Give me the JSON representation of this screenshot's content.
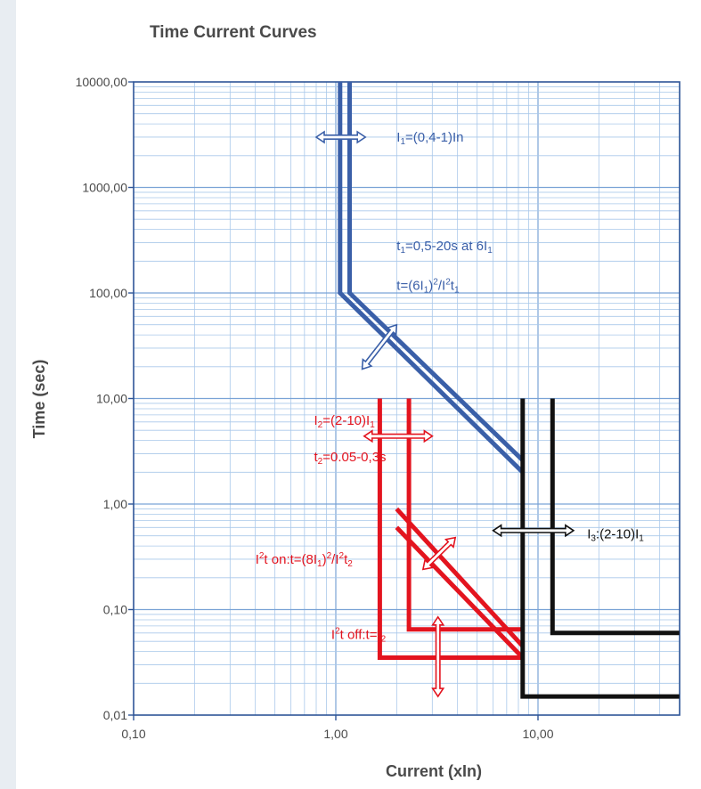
{
  "chart_data": {
    "type": "line",
    "title": "Time Current Curves",
    "xlabel": "Current (xIn)",
    "ylabel": "Time (sec)",
    "x_scale": "log",
    "y_scale": "log",
    "xlim": [
      0.1,
      50
    ],
    "ylim": [
      0.01,
      10000
    ],
    "grid": true,
    "x_ticks": [
      {
        "value": 0.1,
        "label": "0,10"
      },
      {
        "value": 1,
        "label": "1,00"
      },
      {
        "value": 10,
        "label": "10,00"
      }
    ],
    "y_ticks": [
      {
        "value": 10000,
        "label": "10000,00"
      },
      {
        "value": 1000,
        "label": "1000,00"
      },
      {
        "value": 100,
        "label": "100,00"
      },
      {
        "value": 10,
        "label": "10,00"
      },
      {
        "value": 1,
        "label": "1,00"
      },
      {
        "value": 0.1,
        "label": "0,10"
      },
      {
        "value": 0.01,
        "label": "0,01"
      }
    ],
    "series": [
      {
        "color": "#3a5fa8",
        "points": [
          [
            1.05,
            10000
          ],
          [
            1.05,
            100
          ],
          [
            8.4,
            2.0
          ]
        ]
      },
      {
        "color": "#3a5fa8",
        "points": [
          [
            1.17,
            10000
          ],
          [
            1.17,
            100
          ],
          [
            8.4,
            2.6
          ]
        ]
      },
      {
        "color": "#e3141f",
        "points": [
          [
            1.65,
            10
          ],
          [
            1.65,
            0.035
          ],
          [
            8.4,
            0.035
          ]
        ]
      },
      {
        "color": "#e3141f",
        "points": [
          [
            2.3,
            10
          ],
          [
            2.3,
            0.065
          ],
          [
            8.4,
            0.065
          ]
        ]
      },
      {
        "color": "#e3141f",
        "points": [
          [
            2.0,
            0.9
          ],
          [
            8.4,
            0.045
          ]
        ]
      },
      {
        "color": "#e3141f",
        "points": [
          [
            2.0,
            0.6
          ],
          [
            8.4,
            0.035
          ]
        ]
      },
      {
        "color": "#111111",
        "points": [
          [
            8.4,
            10
          ],
          [
            8.4,
            0.015
          ],
          [
            50,
            0.015
          ]
        ]
      },
      {
        "color": "#111111",
        "points": [
          [
            11.8,
            10
          ],
          [
            11.8,
            0.06
          ],
          [
            50,
            0.06
          ]
        ]
      }
    ],
    "arrows": [
      {
        "color": "#3a5fa8",
        "from": [
          0.8,
          3000
        ],
        "to": [
          1.4,
          3000
        ]
      },
      {
        "color": "#3a5fa8",
        "from": [
          1.35,
          19
        ],
        "to": [
          2.0,
          50
        ]
      },
      {
        "color": "#e3141f",
        "from": [
          1.38,
          4.4
        ],
        "to": [
          3.0,
          4.4
        ]
      },
      {
        "color": "#e3141f",
        "from": [
          2.7,
          0.24
        ],
        "to": [
          3.9,
          0.48
        ]
      },
      {
        "color": "#e3141f",
        "from": [
          3.2,
          0.015
        ],
        "to": [
          3.2,
          0.085
        ]
      },
      {
        "color": "#111111",
        "from": [
          6.0,
          0.56
        ],
        "to": [
          15.0,
          0.56
        ]
      }
    ],
    "annotations": [
      {
        "id": "i1",
        "color": "#3a5fa8",
        "x": 2.0,
        "y": 3000,
        "segments": [
          [
            "I",
            ""
          ],
          [
            "1",
            "sub"
          ],
          [
            "=(0,4-1)In",
            ""
          ]
        ]
      },
      {
        "id": "t1",
        "color": "#3a5fa8",
        "x": 2.0,
        "y": 280,
        "segments": [
          [
            "t",
            ""
          ],
          [
            "1",
            "sub"
          ],
          [
            "=0,5-20s at 6I",
            ""
          ],
          [
            "1",
            "sub"
          ]
        ]
      },
      {
        "id": "t1f",
        "color": "#3a5fa8",
        "x": 2.0,
        "y": 118,
        "segments": [
          [
            "t=(6I",
            ""
          ],
          [
            "1",
            "sub"
          ],
          [
            ")",
            ""
          ],
          [
            "2",
            "sup"
          ],
          [
            "/I",
            ""
          ],
          [
            "2",
            "sup"
          ],
          [
            "t",
            ""
          ],
          [
            "1",
            "sub"
          ]
        ]
      },
      {
        "id": "i2",
        "color": "#e3141f",
        "x": 0.78,
        "y": 6.2,
        "segments": [
          [
            "I",
            ""
          ],
          [
            "2",
            "sub"
          ],
          [
            "=(2-10)I",
            ""
          ],
          [
            "1",
            "sub"
          ]
        ]
      },
      {
        "id": "t2",
        "color": "#e3141f",
        "x": 0.78,
        "y": 2.8,
        "segments": [
          [
            "t",
            ""
          ],
          [
            "2",
            "sub"
          ],
          [
            "=0.05-0,3s",
            ""
          ]
        ]
      },
      {
        "id": "i2ton",
        "color": "#e3141f",
        "x": 0.4,
        "y": 0.3,
        "segments": [
          [
            "I",
            ""
          ],
          [
            "2",
            "sup"
          ],
          [
            "t on:t=(8I",
            ""
          ],
          [
            "1",
            "sub"
          ],
          [
            ")",
            ""
          ],
          [
            "2",
            "sup"
          ],
          [
            "/I",
            ""
          ],
          [
            "2",
            "sup"
          ],
          [
            "t",
            ""
          ],
          [
            "2",
            "sub"
          ]
        ]
      },
      {
        "id": "i2toff",
        "color": "#e3141f",
        "x": 0.95,
        "y": 0.058,
        "segments": [
          [
            "I",
            ""
          ],
          [
            "2",
            "sup"
          ],
          [
            "t off:t=t",
            ""
          ],
          [
            "2",
            "sub"
          ]
        ]
      },
      {
        "id": "i3",
        "color": "#111111",
        "x": 17.5,
        "y": 0.52,
        "segments": [
          [
            "I",
            ""
          ],
          [
            "3",
            "sub"
          ],
          [
            ":(2-10)I",
            ""
          ],
          [
            "1",
            "sub"
          ]
        ]
      }
    ]
  }
}
